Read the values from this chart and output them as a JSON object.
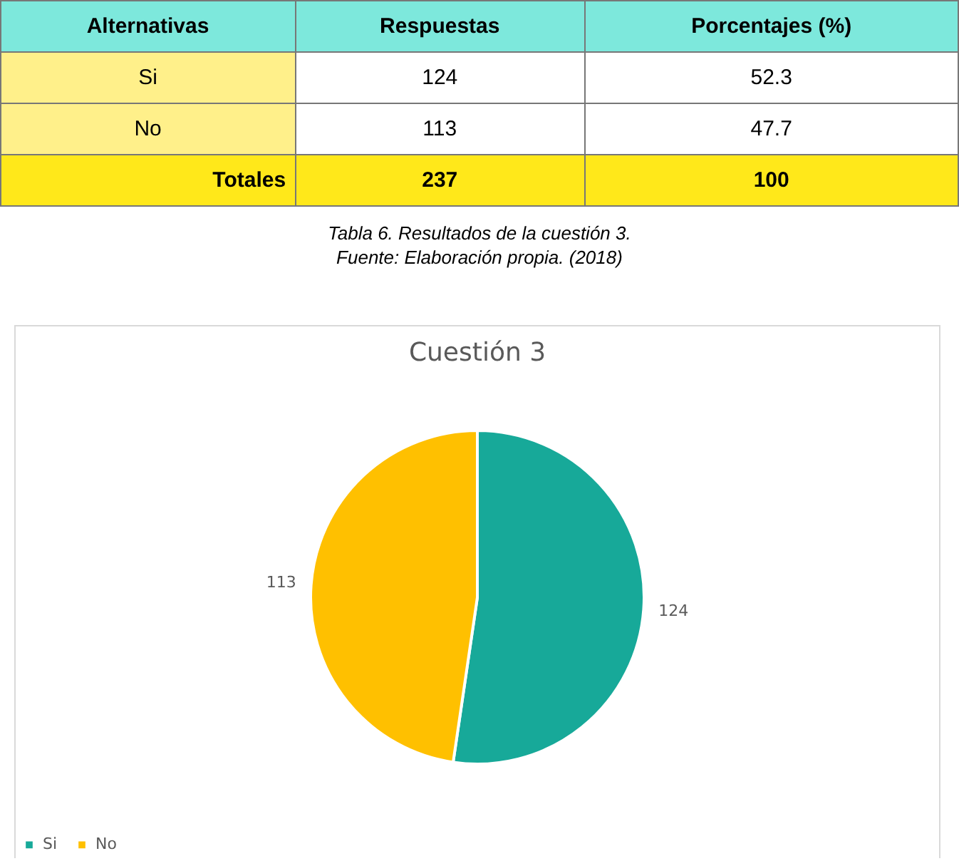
{
  "chart_data": {
    "type": "pie",
    "title": "Cuestión 3",
    "categories": [
      "Si",
      "No"
    ],
    "values": [
      124,
      113
    ],
    "colors": [
      "#17a999",
      "#ffc000"
    ],
    "data_labels": true,
    "legend": "bottom",
    "annotations": [
      "Alternativas",
      "Respuestas",
      "Porcentajes (%)",
      "Si",
      "124",
      "52.3",
      "No",
      "113",
      "47.7",
      "Totales",
      "237",
      "100",
      "Tabla 6. Resultados de la cuestión 3.",
      "Fuente: Elaboración propia. (2018)"
    ]
  }
}
